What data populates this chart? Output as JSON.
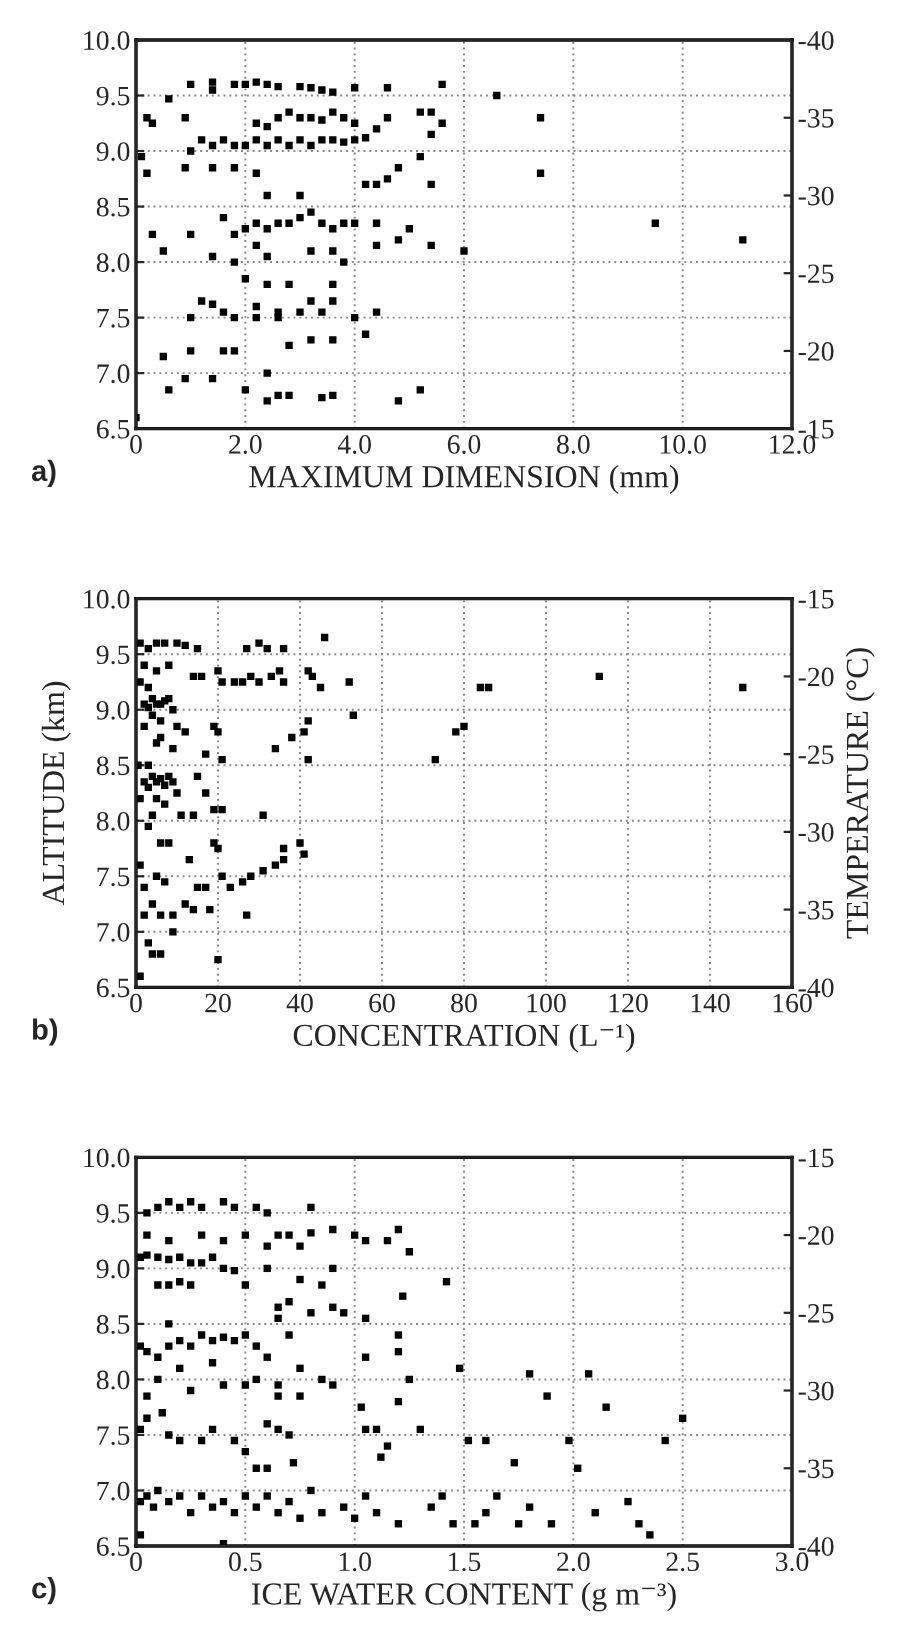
{
  "chart_data": [
    {
      "type": "scatter",
      "xlabel": "MAXIMUM DIMENSION (mm)",
      "annotations": [
        "a)"
      ],
      "marker": "square",
      "grid": true,
      "xlim": [
        0,
        12
      ],
      "xticks": [
        {
          "value": 0,
          "label": "0"
        },
        {
          "value": 2,
          "label": "2.0"
        },
        {
          "value": 4,
          "label": "4.0"
        },
        {
          "value": 6,
          "label": "6.0"
        },
        {
          "value": 8,
          "label": "8.0"
        },
        {
          "value": 10,
          "label": "10.0"
        },
        {
          "value": 12,
          "label": "12.0"
        }
      ],
      "ylim": [
        6.5,
        10
      ],
      "yticks": [
        {
          "value": 6.5,
          "label": "6.5"
        },
        {
          "value": 7,
          "label": "7.0"
        },
        {
          "value": 7.5,
          "label": "7.5"
        },
        {
          "value": 8,
          "label": "8.0"
        },
        {
          "value": 8.5,
          "label": "8.5"
        },
        {
          "value": 9,
          "label": "9.0"
        },
        {
          "value": 9.5,
          "label": "9.5"
        },
        {
          "value": 10,
          "label": "10.0"
        }
      ],
      "y2lim": [
        -15,
        -40
      ],
      "y2ticks": [
        -40,
        -35,
        -30,
        -25,
        -20,
        -15
      ],
      "series": [
        {
          "color": "#000000",
          "x": [
            1.0,
            1.4,
            1.4,
            1.8,
            2.0,
            2.2,
            2.4,
            2.6,
            3.0,
            3.2,
            3.4,
            3.6,
            4.0,
            4.6,
            5.6,
            0.6,
            6.6,
            0.2,
            0.3,
            0.9,
            2.2,
            2.4,
            2.6,
            2.8,
            3.0,
            3.2,
            3.4,
            3.6,
            3.8,
            4.0,
            4.4,
            4.6,
            5.2,
            5.4,
            5.6,
            7.4,
            5.4,
            0.9,
            1.0,
            1.2,
            1.4,
            1.6,
            1.8,
            2.0,
            2.2,
            2.4,
            2.6,
            2.8,
            3.0,
            3.2,
            3.4,
            3.6,
            3.8,
            4.0,
            4.2,
            1.4,
            1.8,
            2.2,
            0.2,
            0.1,
            5.2,
            4.8,
            7.4,
            4.6,
            4.2,
            4.4,
            5.4,
            3.0,
            2.4,
            0.3,
            1.0,
            0.5,
            1.4,
            1.6,
            1.8,
            1.8,
            2.0,
            2.2,
            2.4,
            2.2,
            2.4,
            2.6,
            2.8,
            3.0,
            3.2,
            3.4,
            3.6,
            3.8,
            3.2,
            3.6,
            3.8,
            4.0,
            4.4,
            4.8,
            5.0,
            5.4,
            6.0,
            9.5,
            11.1,
            4.4,
            1.2,
            1.4,
            1.6,
            1.8,
            2.0,
            2.2,
            2.4,
            2.6,
            2.8,
            2.2,
            2.6,
            3.0,
            3.2,
            3.4,
            3.6,
            3.6,
            4.0,
            4.4,
            4.2,
            1.0,
            2.8,
            3.2,
            3.6,
            0.5,
            1.0,
            1.6,
            1.8,
            2.4,
            0.6,
            0.9,
            1.4,
            2.0,
            2.4,
            2.6,
            2.8,
            3.4,
            3.6,
            4.8,
            5.2,
            0.0
          ],
          "values": [
            9.6,
            9.62,
            9.55,
            9.6,
            9.6,
            9.62,
            9.6,
            9.58,
            9.58,
            9.57,
            9.55,
            9.53,
            9.57,
            9.57,
            9.6,
            9.47,
            9.5,
            9.3,
            9.25,
            9.3,
            9.25,
            9.22,
            9.3,
            9.35,
            9.3,
            9.3,
            9.28,
            9.35,
            9.3,
            9.25,
            9.2,
            9.3,
            9.35,
            9.35,
            9.25,
            9.3,
            9.15,
            8.85,
            9.0,
            9.1,
            9.05,
            9.1,
            9.05,
            9.05,
            9.1,
            9.05,
            9.1,
            9.05,
            9.1,
            9.05,
            9.1,
            9.1,
            9.08,
            9.1,
            9.12,
            8.85,
            8.85,
            8.8,
            8.8,
            8.95,
            8.95,
            8.85,
            8.8,
            8.75,
            8.7,
            8.7,
            8.7,
            8.6,
            8.6,
            8.25,
            8.25,
            8.1,
            8.05,
            8.4,
            8.25,
            8.0,
            8.3,
            8.35,
            8.3,
            8.15,
            8.05,
            8.35,
            8.35,
            8.4,
            8.45,
            8.35,
            8.3,
            8.35,
            8.1,
            8.1,
            8.0,
            8.35,
            8.15,
            8.2,
            8.3,
            8.15,
            8.1,
            8.35,
            8.2,
            8.35,
            7.65,
            7.62,
            7.55,
            7.5,
            7.85,
            7.6,
            7.8,
            7.55,
            7.8,
            7.5,
            7.5,
            7.55,
            7.65,
            7.55,
            7.65,
            7.8,
            7.5,
            7.55,
            7.35,
            7.5,
            7.25,
            7.3,
            7.3,
            7.15,
            7.2,
            7.2,
            7.2,
            7.0,
            6.85,
            6.95,
            6.95,
            6.85,
            6.75,
            6.8,
            6.8,
            6.78,
            6.8,
            6.75,
            6.85,
            6.6
          ]
        }
      ]
    },
    {
      "type": "scatter",
      "xlabel": "CONCENTRATION (L⁻¹)",
      "ylabel": "ALTITUDE (km)",
      "y2label": "TEMPERATURE (°C)",
      "annotations": [
        "b)"
      ],
      "marker": "square",
      "grid": true,
      "xlim": [
        0,
        160
      ],
      "xticks": [
        0,
        20,
        40,
        60,
        80,
        100,
        120,
        140,
        160
      ],
      "ylim": [
        6.5,
        10
      ],
      "yticks": [
        {
          "value": 6.5,
          "label": "6.5"
        },
        {
          "value": 7,
          "label": "7.0"
        },
        {
          "value": 7.5,
          "label": "7.5"
        },
        {
          "value": 8,
          "label": "8.0"
        },
        {
          "value": 8.5,
          "label": "8.5"
        },
        {
          "value": 9,
          "label": "9.0"
        },
        {
          "value": 9.5,
          "label": "9.5"
        },
        {
          "value": 10,
          "label": "10.0"
        }
      ],
      "y2lim": [
        -40,
        -15
      ],
      "y2ticks": [
        -40,
        -35,
        -30,
        -25,
        -20,
        -15
      ],
      "series": [
        {
          "color": "#000000",
          "x": [
            1,
            3,
            5,
            7,
            10,
            12,
            2,
            5,
            8,
            1,
            3,
            4,
            5,
            6,
            7,
            2,
            3,
            8,
            9,
            4,
            6,
            10,
            12,
            2,
            6,
            9,
            5,
            3,
            2,
            4,
            5,
            6,
            7,
            8,
            3,
            9,
            1,
            5,
            7,
            10,
            4,
            3,
            11,
            15,
            14,
            16,
            20,
            21,
            24,
            27,
            30,
            32,
            36,
            26,
            28,
            30,
            33,
            35,
            36,
            42,
            43,
            45,
            46,
            52,
            53,
            42,
            41,
            38,
            19,
            20,
            17,
            21,
            34,
            42,
            73,
            80,
            78,
            84,
            86,
            113,
            148,
            15,
            17,
            19,
            21,
            14,
            31,
            19,
            20,
            36,
            40,
            41,
            36,
            34,
            31,
            28,
            26,
            23,
            21,
            15,
            17,
            13,
            6,
            8,
            5,
            7,
            12,
            14,
            18,
            27,
            4,
            6,
            9,
            9,
            2,
            3,
            4,
            6,
            20,
            1,
            1,
            2,
            0.5
          ],
          "values": [
            9.6,
            9.55,
            9.6,
            9.6,
            9.6,
            9.58,
            9.4,
            9.35,
            9.4,
            9.25,
            9.2,
            9.1,
            9.05,
            9.05,
            9.08,
            9.05,
            9.02,
            9.1,
            9.0,
            8.95,
            8.9,
            8.85,
            8.8,
            8.85,
            8.75,
            8.65,
            8.7,
            8.5,
            8.35,
            8.4,
            8.35,
            8.38,
            8.32,
            8.4,
            8.3,
            8.35,
            8.2,
            8.2,
            8.15,
            8.25,
            8.05,
            7.95,
            8.05,
            9.55,
            9.3,
            9.3,
            9.35,
            9.25,
            9.25,
            9.55,
            9.6,
            9.55,
            9.55,
            9.25,
            9.3,
            9.25,
            9.3,
            9.35,
            9.25,
            9.35,
            9.3,
            9.2,
            9.65,
            9.25,
            8.95,
            8.9,
            8.8,
            8.75,
            8.85,
            8.8,
            8.6,
            8.55,
            8.65,
            8.55,
            8.55,
            8.85,
            8.8,
            9.2,
            9.2,
            9.3,
            9.2,
            8.4,
            8.25,
            8.1,
            8.1,
            8.05,
            8.05,
            7.8,
            7.75,
            7.75,
            7.8,
            7.7,
            7.65,
            7.6,
            7.55,
            7.5,
            7.45,
            7.4,
            7.5,
            7.4,
            7.4,
            7.65,
            7.8,
            7.8,
            7.5,
            7.45,
            7.25,
            7.2,
            7.2,
            7.15,
            7.25,
            7.15,
            7.15,
            7.0,
            7.15,
            6.9,
            6.8,
            6.8,
            6.75,
            6.6,
            7.6,
            7.4,
            8.5
          ]
        }
      ]
    },
    {
      "type": "scatter",
      "xlabel": "ICE WATER CONTENT (g m⁻³)",
      "annotations": [
        "c)"
      ],
      "marker": "square",
      "grid": true,
      "xlim": [
        0,
        3
      ],
      "xticks": [
        {
          "value": 0,
          "label": "0"
        },
        {
          "value": 0.5,
          "label": "0.5"
        },
        {
          "value": 1,
          "label": "1.0"
        },
        {
          "value": 1.5,
          "label": "1.5"
        },
        {
          "value": 2,
          "label": "2.0"
        },
        {
          "value": 2.5,
          "label": "2.5"
        },
        {
          "value": 3,
          "label": "3.0"
        }
      ],
      "ylim": [
        6.5,
        10
      ],
      "yticks": [
        {
          "value": 6.5,
          "label": "6.5"
        },
        {
          "value": 7,
          "label": "7.0"
        },
        {
          "value": 7.5,
          "label": "7.5"
        },
        {
          "value": 8,
          "label": "8.0"
        },
        {
          "value": 8.5,
          "label": "8.5"
        },
        {
          "value": 9,
          "label": "9.0"
        },
        {
          "value": 9.5,
          "label": "9.5"
        },
        {
          "value": 10,
          "label": "10.0"
        }
      ],
      "y2lim": [
        -40,
        -15
      ],
      "y2ticks": [
        -40,
        -35,
        -30,
        -25,
        -20,
        -15
      ],
      "series": [
        {
          "color": "#000000",
          "x": [
            0.05,
            0.1,
            0.15,
            0.2,
            0.25,
            0.3,
            0.4,
            0.45,
            0.55,
            0.6,
            0.8,
            0.05,
            0.15,
            0.3,
            0.4,
            0.5,
            0.6,
            0.65,
            0.7,
            0.8,
            0.9,
            1.0,
            1.05,
            1.15,
            1.2,
            1.25,
            0.75,
            0.02,
            0.05,
            0.1,
            0.15,
            0.2,
            0.25,
            0.3,
            0.35,
            0.4,
            0.45,
            0.6,
            0.1,
            0.15,
            0.2,
            0.25,
            0.5,
            0.75,
            0.85,
            0.9,
            1.42,
            0.7,
            0.65,
            0.8,
            0.9,
            0.95,
            1.05,
            1.22,
            0.02,
            0.05,
            0.1,
            0.15,
            0.2,
            0.25,
            0.3,
            0.35,
            0.4,
            0.45,
            0.5,
            0.55,
            0.15,
            0.6,
            0.65,
            0.7,
            0.35,
            0.2,
            0.25,
            0.4,
            0.5,
            0.55,
            0.65,
            0.75,
            0.85,
            0.9,
            1.05,
            1.2,
            1.2,
            1.25,
            1.48,
            1.8,
            2.07,
            1.88,
            2.15,
            1.03,
            1.2,
            0.65,
            0.75,
            0.05,
            0.1,
            0.02,
            0.05,
            0.12,
            0.15,
            0.2,
            0.3,
            0.35,
            0.45,
            0.5,
            0.6,
            0.65,
            0.7,
            1.05,
            1.1,
            1.12,
            1.15,
            1.3,
            1.52,
            1.6,
            1.98,
            2.42,
            2.5,
            1.73,
            2.02,
            0.55,
            0.6,
            0.72,
            0.02,
            0.05,
            0.08,
            0.1,
            0.15,
            0.2,
            0.25,
            0.3,
            0.35,
            0.4,
            0.45,
            0.5,
            0.55,
            0.6,
            0.65,
            0.7,
            0.75,
            0.8,
            0.85,
            0.95,
            1.0,
            1.05,
            1.1,
            1.2,
            1.35,
            1.4,
            1.45,
            1.55,
            1.6,
            1.65,
            1.75,
            1.8,
            1.9,
            2.1,
            2.25,
            2.3,
            2.35,
            0.4,
            0.02
          ],
          "values": [
            9.5,
            9.55,
            9.6,
            9.55,
            9.6,
            9.55,
            9.6,
            9.55,
            9.55,
            9.5,
            9.55,
            9.3,
            9.25,
            9.3,
            9.25,
            9.3,
            9.2,
            9.3,
            9.3,
            9.32,
            9.35,
            9.3,
            9.25,
            9.25,
            9.35,
            9.15,
            9.2,
            9.1,
            9.12,
            9.1,
            9.08,
            9.1,
            9.05,
            9.05,
            9.1,
            9.0,
            8.98,
            9.0,
            8.85,
            8.85,
            8.88,
            8.85,
            8.85,
            8.9,
            8.85,
            9.0,
            8.88,
            8.7,
            8.65,
            8.6,
            8.65,
            8.6,
            8.55,
            8.75,
            8.3,
            8.25,
            8.2,
            8.3,
            8.35,
            8.3,
            8.4,
            8.35,
            8.38,
            8.35,
            8.4,
            8.3,
            8.5,
            8.2,
            8.55,
            8.4,
            8.15,
            8.1,
            7.9,
            7.95,
            7.95,
            8.0,
            7.95,
            8.1,
            8.0,
            7.95,
            8.2,
            8.25,
            8.4,
            8.0,
            8.1,
            8.05,
            8.05,
            7.85,
            7.75,
            7.75,
            7.8,
            7.85,
            7.85,
            7.85,
            8.0,
            7.55,
            7.65,
            7.7,
            7.5,
            7.45,
            7.45,
            7.55,
            7.45,
            7.35,
            7.6,
            7.55,
            7.5,
            7.55,
            7.55,
            7.3,
            7.4,
            7.55,
            7.45,
            7.45,
            7.45,
            7.45,
            7.65,
            7.25,
            7.2,
            7.2,
            7.2,
            7.25,
            6.9,
            6.95,
            6.85,
            7.0,
            6.9,
            6.95,
            6.8,
            6.95,
            6.85,
            6.9,
            6.8,
            6.95,
            6.85,
            6.95,
            6.8,
            6.9,
            6.75,
            7.0,
            6.8,
            6.85,
            6.75,
            6.95,
            6.8,
            6.7,
            6.85,
            6.95,
            6.7,
            6.7,
            6.8,
            6.95,
            6.7,
            6.85,
            6.7,
            6.8,
            6.9,
            6.7,
            6.6,
            6.52,
            6.6
          ]
        }
      ]
    }
  ]
}
